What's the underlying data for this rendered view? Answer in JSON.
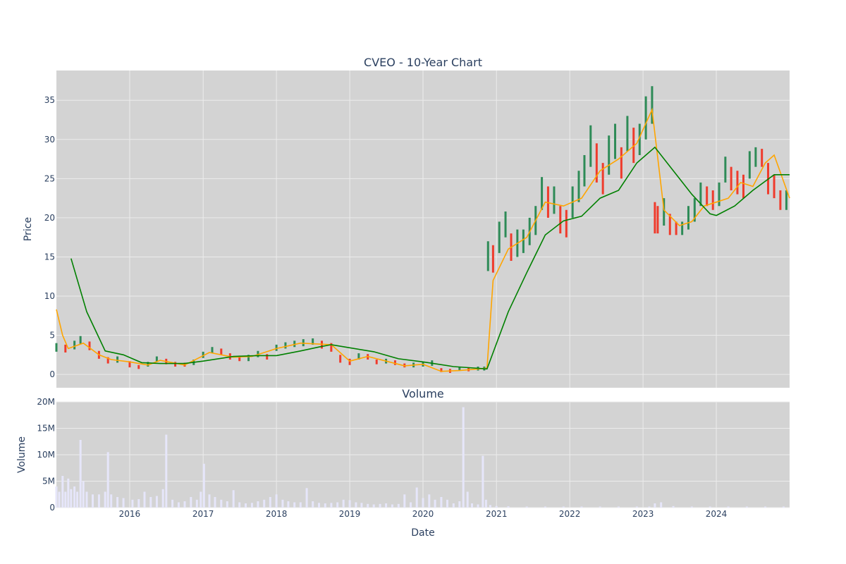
{
  "colors": {
    "plot_bg": "#d3d3d3",
    "grid": "#ececec",
    "increasing": "#2e8b57",
    "decreasing": "#ef3b2c",
    "ma_short": "#ffa500",
    "ma_long": "#008000",
    "volume_bar": "#e6e6fa",
    "text": "#2a3f5f"
  },
  "chart_data": [
    {
      "type": "line",
      "title": "CVEO - 10-Year Chart",
      "xlabel": "",
      "ylabel": "Price",
      "xlim": [
        "2015-01-01",
        "2024-12-31"
      ],
      "ylim": [
        -1.7,
        38.8
      ],
      "y_ticks": [
        0,
        5,
        10,
        15,
        20,
        25,
        30,
        35
      ],
      "x_ticks": [
        "2016",
        "2017",
        "2018",
        "2019",
        "2020",
        "2021",
        "2022",
        "2023",
        "2024"
      ],
      "x_tick_dates": [
        "2016-01-01",
        "2017-01-01",
        "2018-01-01",
        "2019-01-01",
        "2020-01-01",
        "2021-01-01",
        "2022-01-01",
        "2023-01-01",
        "2024-01-01"
      ],
      "grid": true,
      "legend": "none",
      "series": [
        {
          "kind": "candlestick",
          "x": [
            "2015-01-01",
            "2015-02-15",
            "2015-04-01",
            "2015-05-01",
            "2015-06-15",
            "2015-08-01",
            "2015-09-15",
            "2015-11-01",
            "2016-01-01",
            "2016-02-15",
            "2016-04-01",
            "2016-05-15",
            "2016-07-01",
            "2016-08-15",
            "2016-10-01",
            "2016-11-15",
            "2017-01-01",
            "2017-02-15",
            "2017-04-01",
            "2017-05-15",
            "2017-07-01",
            "2017-08-15",
            "2017-10-01",
            "2017-11-15",
            "2018-01-01",
            "2018-02-15",
            "2018-04-01",
            "2018-05-15",
            "2018-07-01",
            "2018-08-15",
            "2018-10-01",
            "2018-11-15",
            "2019-01-01",
            "2019-02-15",
            "2019-04-01",
            "2019-05-15",
            "2019-07-01",
            "2019-08-15",
            "2019-10-01",
            "2019-11-15",
            "2020-01-01",
            "2020-02-15",
            "2020-04-01",
            "2020-05-15",
            "2020-07-01",
            "2020-08-15",
            "2020-10-01",
            "2020-11-01",
            "2020-11-20",
            "2020-12-15",
            "2021-01-15",
            "2021-02-15",
            "2021-03-15",
            "2021-04-15",
            "2021-05-15",
            "2021-06-15",
            "2021-07-15",
            "2021-08-15",
            "2021-09-15",
            "2021-10-15",
            "2021-11-15",
            "2021-12-15",
            "2022-01-15",
            "2022-02-15",
            "2022-03-15",
            "2022-04-15",
            "2022-05-15",
            "2022-06-15",
            "2022-07-15",
            "2022-08-15",
            "2022-09-15",
            "2022-10-15",
            "2022-11-15",
            "2022-12-15",
            "2023-01-15",
            "2023-02-15",
            "2023-03-01",
            "2023-03-15",
            "2023-04-15",
            "2023-05-15",
            "2023-06-15",
            "2023-07-15",
            "2023-08-15",
            "2023-09-15",
            "2023-10-15",
            "2023-11-15",
            "2023-12-15",
            "2024-01-15",
            "2024-02-15",
            "2024-03-15",
            "2024-04-15",
            "2024-05-15",
            "2024-06-15",
            "2024-07-15",
            "2024-08-15",
            "2024-09-15",
            "2024-10-15",
            "2024-11-15",
            "2024-12-15"
          ],
          "close": [
            3.5,
            3.2,
            3.8,
            4.5,
            3.7,
            2.5,
            1.8,
            1.9,
            1.3,
            0.9,
            1.3,
            1.9,
            1.6,
            1.3,
            1.2,
            1.6,
            2.5,
            3.1,
            2.9,
            2.3,
            2.0,
            2.1,
            2.6,
            2.2,
            3.4,
            3.7,
            3.9,
            4.0,
            4.2,
            3.8,
            3.5,
            2.0,
            1.6,
            2.3,
            2.2,
            1.6,
            1.7,
            1.5,
            1.1,
            1.2,
            1.3,
            1.5,
            0.5,
            0.4,
            0.7,
            0.6,
            0.7,
            0.7,
            15.0,
            14.5,
            17.5,
            19.5,
            16.0,
            16.5,
            17.0,
            18.0,
            19.5,
            23.5,
            22.0,
            22.5,
            20.0,
            19.0,
            22.0,
            24.0,
            26.0,
            29.5,
            27.0,
            25.0,
            28.0,
            30.0,
            27.0,
            31.0,
            29.5,
            30.0,
            32.5,
            35.0,
            20.0,
            19.5,
            21.0,
            19.0,
            18.5,
            18.5,
            20.0,
            21.0,
            23.0,
            22.5,
            22.0,
            23.0,
            26.5,
            25.0,
            24.5,
            24.0,
            27.0,
            28.0,
            27.5,
            25.0,
            24.0,
            22.0,
            22.5
          ],
          "range_low": [
            2.9,
            2.8,
            3.2,
            3.9,
            3.1,
            2.0,
            1.4,
            1.5,
            0.9,
            0.7,
            1.0,
            1.6,
            1.3,
            1.0,
            1.0,
            1.2,
            2.1,
            2.7,
            2.5,
            1.9,
            1.7,
            1.7,
            2.2,
            1.9,
            3.0,
            3.3,
            3.5,
            3.6,
            3.8,
            3.3,
            2.9,
            1.5,
            1.2,
            1.9,
            1.9,
            1.3,
            1.4,
            1.2,
            0.9,
            0.9,
            1.0,
            1.1,
            0.3,
            0.2,
            0.5,
            0.4,
            0.5,
            0.5,
            13.2,
            13.0,
            15.5,
            17.5,
            14.5,
            15.0,
            15.5,
            16.5,
            17.8,
            21.0,
            20.0,
            20.5,
            18.0,
            17.5,
            20.0,
            22.0,
            24.0,
            26.5,
            24.5,
            23.0,
            25.5,
            27.5,
            25.0,
            28.5,
            27.0,
            28.0,
            30.0,
            32.0,
            18.0,
            18.0,
            19.0,
            17.8,
            17.8,
            17.8,
            18.5,
            19.5,
            21.5,
            21.5,
            21.0,
            21.5,
            24.5,
            23.5,
            23.0,
            22.5,
            25.0,
            26.5,
            26.5,
            23.0,
            22.5,
            21.0,
            21.0
          ],
          "range_high": [
            4.0,
            3.8,
            4.3,
            4.9,
            4.2,
            3.0,
            2.2,
            2.3,
            1.7,
            1.2,
            1.6,
            2.3,
            2.0,
            1.6,
            1.5,
            1.9,
            2.9,
            3.5,
            3.3,
            2.7,
            2.4,
            2.5,
            3.0,
            2.6,
            3.8,
            4.1,
            4.3,
            4.5,
            4.6,
            4.3,
            4.0,
            2.5,
            2.0,
            2.7,
            2.6,
            1.9,
            2.0,
            1.8,
            1.4,
            1.5,
            1.6,
            1.8,
            0.8,
            0.7,
            1.0,
            0.9,
            1.0,
            1.0,
            17.0,
            16.5,
            19.5,
            20.8,
            18.0,
            18.5,
            18.5,
            20.0,
            21.5,
            25.2,
            24.0,
            24.0,
            21.5,
            21.0,
            24.0,
            26.0,
            28.0,
            31.8,
            29.5,
            27.0,
            30.5,
            32.0,
            29.0,
            33.0,
            31.5,
            32.0,
            35.5,
            36.8,
            22.0,
            21.5,
            22.5,
            20.5,
            19.5,
            19.5,
            21.5,
            22.5,
            24.5,
            24.0,
            23.5,
            24.5,
            27.8,
            26.5,
            26.0,
            25.5,
            28.5,
            29.0,
            28.8,
            27.0,
            25.5,
            23.5,
            23.5
          ]
        },
        {
          "kind": "moving-average-short",
          "x": [
            "2015-01-01",
            "2015-02-01",
            "2015-03-01",
            "2015-05-15",
            "2015-08-01",
            "2015-10-01",
            "2016-01-01",
            "2016-04-01",
            "2016-06-01",
            "2016-10-01",
            "2017-02-01",
            "2017-06-01",
            "2017-09-01",
            "2018-01-01",
            "2018-05-01",
            "2018-10-01",
            "2019-01-01",
            "2019-04-01",
            "2019-07-01",
            "2019-10-01",
            "2020-01-01",
            "2020-04-01",
            "2020-07-01",
            "2020-11-15",
            "2020-12-15",
            "2021-03-01",
            "2021-06-01",
            "2021-09-01",
            "2021-12-01",
            "2022-03-01",
            "2022-06-01",
            "2022-09-01",
            "2022-12-01",
            "2023-02-15",
            "2023-04-15",
            "2023-07-01",
            "2023-09-01",
            "2023-11-01",
            "2024-01-01",
            "2024-03-01",
            "2024-05-01",
            "2024-07-01",
            "2024-09-01",
            "2024-10-15",
            "2024-12-31"
          ],
          "y": [
            8.3,
            5.0,
            3.3,
            4.0,
            2.5,
            1.9,
            1.6,
            1.2,
            1.8,
            1.2,
            2.8,
            2.2,
            2.3,
            3.3,
            4.0,
            3.8,
            1.7,
            2.3,
            1.7,
            1.1,
            1.3,
            0.4,
            0.5,
            0.8,
            12.0,
            16.0,
            17.5,
            22.0,
            21.5,
            22.5,
            26.0,
            27.5,
            29.5,
            33.8,
            21.0,
            19.0,
            19.5,
            21.5,
            22.0,
            22.5,
            24.5,
            24.0,
            27.0,
            28.0,
            22.5
          ]
        },
        {
          "kind": "moving-average-long",
          "x": [
            "2015-03-15",
            "2015-06-01",
            "2015-09-01",
            "2015-12-01",
            "2016-03-01",
            "2016-06-01",
            "2016-10-01",
            "2017-01-01",
            "2017-06-01",
            "2017-10-01",
            "2018-01-01",
            "2018-05-01",
            "2018-08-01",
            "2018-10-01",
            "2019-01-01",
            "2019-05-01",
            "2019-09-01",
            "2020-01-01",
            "2020-06-01",
            "2020-11-15",
            "2021-03-01",
            "2021-06-01",
            "2021-09-01",
            "2021-12-01",
            "2022-03-01",
            "2022-06-01",
            "2022-09-01",
            "2022-12-01",
            "2023-03-01",
            "2023-06-01",
            "2023-09-01",
            "2023-12-01",
            "2024-01-01",
            "2024-04-01",
            "2024-07-01",
            "2024-10-15",
            "2024-12-31"
          ],
          "y": [
            14.8,
            8.0,
            3.0,
            2.5,
            1.5,
            1.4,
            1.4,
            1.7,
            2.3,
            2.4,
            2.4,
            3.0,
            3.5,
            3.8,
            3.4,
            2.9,
            2.0,
            1.6,
            1.0,
            0.7,
            8.0,
            13.0,
            17.8,
            19.6,
            20.2,
            22.5,
            23.5,
            27.0,
            29.0,
            26.0,
            23.0,
            20.5,
            20.3,
            21.5,
            23.5,
            25.5,
            25.5
          ]
        }
      ]
    },
    {
      "type": "bar",
      "title": "Volume",
      "xlabel": "Date",
      "ylabel": "Volume",
      "ylim": [
        0,
        20000000
      ],
      "y_ticks": [
        0,
        5000000,
        10000000,
        15000000,
        20000000
      ],
      "y_tick_labels": [
        "0",
        "5M",
        "10M",
        "15M",
        "20M"
      ],
      "x_ticks": [
        "2016",
        "2017",
        "2018",
        "2019",
        "2020",
        "2021",
        "2022",
        "2023",
        "2024"
      ],
      "grid": true,
      "series": [
        {
          "name": "",
          "x": [
            "2015-01-01",
            "2015-01-15",
            "2015-02-01",
            "2015-02-15",
            "2015-03-01",
            "2015-03-15",
            "2015-04-01",
            "2015-04-15",
            "2015-05-01",
            "2015-05-15",
            "2015-06-01",
            "2015-07-01",
            "2015-08-01",
            "2015-09-01",
            "2015-09-15",
            "2015-10-01",
            "2015-11-01",
            "2015-12-01",
            "2016-01-15",
            "2016-02-15",
            "2016-03-15",
            "2016-04-15",
            "2016-05-15",
            "2016-06-15",
            "2016-07-01",
            "2016-08-01",
            "2016-09-01",
            "2016-10-01",
            "2016-11-01",
            "2016-12-01",
            "2016-12-20",
            "2017-01-05",
            "2017-02-01",
            "2017-03-01",
            "2017-04-01",
            "2017-05-01",
            "2017-06-01",
            "2017-07-01",
            "2017-08-01",
            "2017-09-01",
            "2017-10-01",
            "2017-11-01",
            "2017-12-01",
            "2018-01-01",
            "2018-02-01",
            "2018-03-01",
            "2018-04-01",
            "2018-05-01",
            "2018-06-01",
            "2018-07-01",
            "2018-08-01",
            "2018-09-01",
            "2018-10-01",
            "2018-11-01",
            "2018-12-01",
            "2019-01-01",
            "2019-02-01",
            "2019-03-01",
            "2019-04-01",
            "2019-05-01",
            "2019-06-01",
            "2019-07-01",
            "2019-08-01",
            "2019-09-01",
            "2019-10-01",
            "2019-11-01",
            "2019-12-01",
            "2020-01-01",
            "2020-02-01",
            "2020-03-01",
            "2020-04-01",
            "2020-05-01",
            "2020-06-01",
            "2020-07-01",
            "2020-07-20",
            "2020-08-10",
            "2020-09-01",
            "2020-10-01",
            "2020-10-25",
            "2020-11-10",
            "2020-12-01",
            "2021-01-01",
            "2021-03-01",
            "2021-06-01",
            "2021-09-01",
            "2021-12-01",
            "2022-03-01",
            "2022-06-01",
            "2022-09-01",
            "2022-12-01",
            "2023-02-01",
            "2023-03-01",
            "2023-04-01",
            "2023-06-01",
            "2023-09-01",
            "2023-12-01",
            "2024-03-01",
            "2024-06-01",
            "2024-09-01",
            "2024-12-01"
          ],
          "values": [
            4000000,
            3000000,
            6000000,
            3000000,
            5500000,
            3500000,
            4000000,
            3000000,
            12800000,
            5000000,
            3000000,
            2500000,
            2500000,
            3000000,
            10500000,
            2500000,
            2000000,
            1800000,
            1500000,
            1600000,
            3000000,
            2000000,
            2200000,
            3500000,
            13800000,
            1500000,
            1000000,
            1200000,
            2000000,
            1500000,
            3000000,
            8300000,
            2500000,
            2000000,
            1500000,
            1200000,
            3300000,
            1000000,
            800000,
            900000,
            1200000,
            1500000,
            2000000,
            2500000,
            1500000,
            1200000,
            1000000,
            1000000,
            3700000,
            1200000,
            900000,
            800000,
            900000,
            1000000,
            1500000,
            1400000,
            1000000,
            900000,
            700000,
            600000,
            700000,
            800000,
            600000,
            700000,
            2500000,
            1000000,
            3800000,
            1800000,
            2500000,
            1500000,
            2000000,
            1500000,
            800000,
            1200000,
            19000000,
            3000000,
            800000,
            600000,
            9800000,
            1500000,
            500000,
            300000,
            250000,
            200000,
            200000,
            200000,
            200000,
            200000,
            200000,
            200000,
            200000,
            800000,
            1000000,
            300000,
            200000,
            200000,
            200000,
            200000,
            200000,
            200000
          ]
        }
      ]
    }
  ]
}
